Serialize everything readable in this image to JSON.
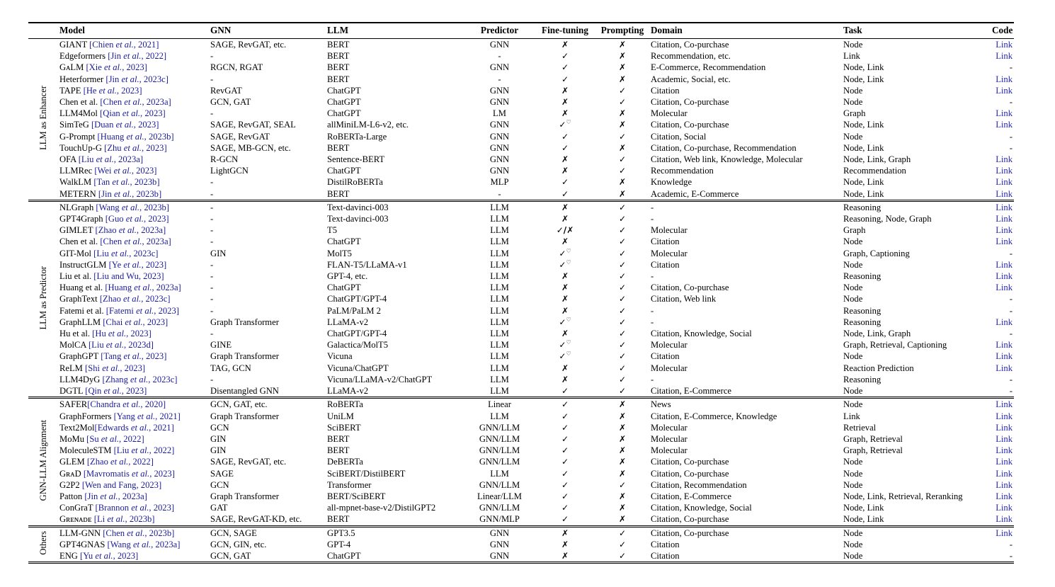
{
  "page": {
    "background": "#ffffff"
  },
  "colors": {
    "text": "#000000",
    "cite": "#1b1b9a",
    "link": "#2525b2"
  },
  "table": {
    "headers": [
      {
        "label": "Model",
        "align": "left"
      },
      {
        "label": "GNN",
        "align": "left"
      },
      {
        "label": "LLM",
        "align": "left"
      },
      {
        "label": "Predictor",
        "align": "center"
      },
      {
        "label": "Fine-tuning",
        "align": "center"
      },
      {
        "label": "Prompting",
        "align": "center"
      },
      {
        "label": "Domain",
        "align": "left"
      },
      {
        "label": "Task",
        "align": "left"
      },
      {
        "label": "Code",
        "align": "right"
      }
    ],
    "groups": [
      {
        "label": "LLM as Enhancer",
        "rows": [
          {
            "model": "GIANT ",
            "cite": "[Chien et al., 2021]",
            "gnn": "SAGE, RevGAT, etc.",
            "llm": "BERT",
            "predictor": "GNN",
            "fine_tuning": "✗",
            "prompting": "✗",
            "domain": "Citation, Co-purchase",
            "task": "Node",
            "code": "Link"
          },
          {
            "model": "Edgeformers ",
            "cite": "[Jin et al., 2022]",
            "gnn": "-",
            "llm": "BERT",
            "predictor": "-",
            "fine_tuning": "✓",
            "prompting": "✗",
            "domain": "Recommendation, etc.",
            "task": "Link",
            "code": "Link"
          },
          {
            "model": "GᴀLM ",
            "cite": "[Xie et al., 2023]",
            "gnn": "RGCN, RGAT",
            "llm": "BERT",
            "predictor": "GNN",
            "fine_tuning": "✓",
            "prompting": "✗",
            "domain": "E-Commerce, Recommendation",
            "task": "Node, Link",
            "code": "-"
          },
          {
            "model": "Heterformer ",
            "cite": "[Jin et al., 2023c]",
            "gnn": "-",
            "llm": "BERT",
            "predictor": "-",
            "fine_tuning": "✓",
            "prompting": "✗",
            "domain": "Academic, Social, etc.",
            "task": "Node, Link",
            "code": "Link"
          },
          {
            "model": "TAPE ",
            "cite": "[He et al., 2023]",
            "gnn": "RevGAT",
            "llm": "ChatGPT",
            "predictor": "GNN",
            "fine_tuning": "✗",
            "prompting": "✓",
            "domain": "Citation",
            "task": "Node",
            "code": "Link"
          },
          {
            "model": "Chen et al. ",
            "cite": "[Chen et al., 2023a]",
            "gnn": "GCN, GAT",
            "llm": "ChatGPT",
            "predictor": "GNN",
            "fine_tuning": "✗",
            "prompting": "✓",
            "domain": "Citation, Co-purchase",
            "task": "Node",
            "code": "-"
          },
          {
            "model": "LLM4Mol ",
            "cite": "[Qian et al., 2023]",
            "gnn": "-",
            "llm": "ChatGPT",
            "predictor": "LM",
            "fine_tuning": "✗",
            "prompting": "✗",
            "domain": "Molecular",
            "task": "Graph",
            "code": "Link"
          },
          {
            "model": "SimTeG ",
            "cite": "[Duan et al., 2023]",
            "gnn": "SAGE, RevGAT, SEAL",
            "llm": "allMiniLM-L6-v2, etc.",
            "predictor": "GNN",
            "fine_tuning": "✓♡",
            "prompting": "✗",
            "domain": "Citation, Co-purchase",
            "task": "Node, Link",
            "code": "Link"
          },
          {
            "model": "G-Prompt ",
            "cite": "[Huang et al., 2023b]",
            "gnn": "SAGE, RevGAT",
            "llm": "RoBERTa-Large",
            "predictor": "GNN",
            "fine_tuning": "✓",
            "prompting": "✓",
            "domain": "Citation, Social",
            "task": "Node",
            "code": "-"
          },
          {
            "model": "TouchUp-G ",
            "cite": "[Zhu et al., 2023]",
            "gnn": "SAGE, MB-GCN, etc.",
            "llm": "BERT",
            "predictor": "GNN",
            "fine_tuning": "✓",
            "prompting": "✗",
            "domain": "Citation, Co-purchase, Recommendation",
            "task": "Node, Link",
            "code": "-"
          },
          {
            "model": "OFA ",
            "cite": "[Liu et al., 2023a]",
            "gnn": "R-GCN",
            "llm": "Sentence-BERT",
            "predictor": "GNN",
            "fine_tuning": "✗",
            "prompting": "✓",
            "domain": "Citation, Web link, Knowledge, Molecular",
            "task": "Node, Link, Graph",
            "code": "Link"
          },
          {
            "model": "LLMRec ",
            "cite": "[Wei et al., 2023]",
            "gnn": "LightGCN",
            "llm": "ChatGPT",
            "predictor": "GNN",
            "fine_tuning": "✗",
            "prompting": "✓",
            "domain": "Recommendation",
            "task": "Recommendation",
            "code": "Link"
          },
          {
            "model": "WalkLM ",
            "cite": "[Tan et al., 2023b]",
            "gnn": "-",
            "llm": "DistilRoBERTa",
            "predictor": "MLP",
            "fine_tuning": "✓",
            "prompting": "✗",
            "domain": "Knowledge",
            "task": "Node, Link",
            "code": "Link"
          },
          {
            "model": "METERN ",
            "cite": "[Jin et al., 2023b]",
            "gnn": "-",
            "llm": "BERT",
            "predictor": "-",
            "fine_tuning": "✓",
            "prompting": "✗",
            "domain": "Academic, E-Commerce",
            "task": "Node, Link",
            "code": "Link"
          }
        ]
      },
      {
        "label": "LLM as Predictor",
        "rows": [
          {
            "model": "NLGraph ",
            "cite": "[Wang et al., 2023b]",
            "gnn": "-",
            "llm": "Text-davinci-003",
            "predictor": "LLM",
            "fine_tuning": "✗",
            "prompting": "✓",
            "domain": "-",
            "task": "Reasoning",
            "code": "Link"
          },
          {
            "model": "GPT4Graph ",
            "cite": "[Guo et al., 2023]",
            "gnn": "-",
            "llm": "Text-davinci-003",
            "predictor": "LLM",
            "fine_tuning": "✗",
            "prompting": "✓",
            "domain": "-",
            "task": "Reasoning, Node, Graph",
            "code": "Link"
          },
          {
            "model": "GIMLET ",
            "cite": "[Zhao et al., 2023a]",
            "gnn": "-",
            "llm": "T5",
            "predictor": "LLM",
            "fine_tuning": "✓/✗",
            "prompting": "✓",
            "domain": "Molecular",
            "task": "Graph",
            "code": "Link"
          },
          {
            "model": "Chen et al. ",
            "cite": "[Chen et al., 2023a]",
            "gnn": "-",
            "llm": "ChatGPT",
            "predictor": "LLM",
            "fine_tuning": "✗",
            "prompting": "✓",
            "domain": "Citation",
            "task": "Node",
            "code": "Link"
          },
          {
            "model": "GIT-Mol ",
            "cite": "[Liu et al., 2023c]",
            "gnn": "GIN",
            "llm": "MolT5",
            "predictor": "LLM",
            "fine_tuning": "✓♡",
            "prompting": "✓",
            "domain": "Molecular",
            "task": "Graph, Captioning",
            "code": "-"
          },
          {
            "model": "InstructGLM ",
            "cite": "[Ye et al., 2023]",
            "gnn": "-",
            "llm": "FLAN-T5/LLaMA-v1",
            "predictor": "LLM",
            "fine_tuning": "✓♡",
            "prompting": "✓",
            "domain": "Citation",
            "task": "Node",
            "code": "Link"
          },
          {
            "model": "Liu et al. ",
            "cite": "[Liu and Wu, 2023]",
            "gnn": "-",
            "llm": "GPT-4, etc.",
            "predictor": "LLM",
            "fine_tuning": "✗",
            "prompting": "✓",
            "domain": "-",
            "task": "Reasoning",
            "code": "Link"
          },
          {
            "model": "Huang et al. ",
            "cite": "[Huang et al., 2023a]",
            "gnn": "-",
            "llm": "ChatGPT",
            "predictor": "LLM",
            "fine_tuning": "✗",
            "prompting": "✓",
            "domain": "Citation, Co-purchase",
            "task": "Node",
            "code": "Link"
          },
          {
            "model": "GraphText ",
            "cite": "[Zhao et al., 2023c]",
            "gnn": "-",
            "llm": "ChatGPT/GPT-4",
            "predictor": "LLM",
            "fine_tuning": "✗",
            "prompting": "✓",
            "domain": "Citation, Web link",
            "task": "Node",
            "code": "-"
          },
          {
            "model": "Fatemi et al. ",
            "cite": "[Fatemi et al., 2023]",
            "gnn": "-",
            "llm": "PaLM/PaLM 2",
            "predictor": "LLM",
            "fine_tuning": "✗",
            "prompting": "✓",
            "domain": "-",
            "task": "Reasoning",
            "code": "-"
          },
          {
            "model": "GraphLLM ",
            "cite": "[Chai et al., 2023]",
            "gnn": "Graph Transformer",
            "llm": "LLaMA-v2",
            "predictor": "LLM",
            "fine_tuning": "✓♡",
            "prompting": "✓",
            "domain": "-",
            "task": "Reasoning",
            "code": "Link"
          },
          {
            "model": "Hu et al. ",
            "cite": "[Hu et al., 2023]",
            "gnn": "-",
            "llm": "ChatGPT/GPT-4",
            "predictor": "LLM",
            "fine_tuning": "✗",
            "prompting": "✓",
            "domain": "Citation, Knowledge, Social",
            "task": "Node, Link, Graph",
            "code": "-"
          },
          {
            "model": "MolCA ",
            "cite": "[Liu et al., 2023d]",
            "gnn": "GINE",
            "llm": "Galactica/MolT5",
            "predictor": "LLM",
            "fine_tuning": "✓♡",
            "prompting": "✓",
            "domain": "Molecular",
            "task": "Graph, Retrieval, Captioning",
            "code": "Link"
          },
          {
            "model": "GraphGPT ",
            "cite": "[Tang et al., 2023]",
            "gnn": "Graph Transformer",
            "llm": "Vicuna",
            "predictor": "LLM",
            "fine_tuning": "✓♡",
            "prompting": "✓",
            "domain": "Citation",
            "task": "Node",
            "code": "Link"
          },
          {
            "model": "ReLM ",
            "cite": "[Shi et al., 2023]",
            "gnn": "TAG, GCN",
            "llm": "Vicuna/ChatGPT",
            "predictor": "LLM",
            "fine_tuning": "✗",
            "prompting": "✓",
            "domain": "Molecular",
            "task": "Reaction Prediction",
            "code": "Link"
          },
          {
            "model": "LLM4DyG ",
            "cite": "[Zhang et al., 2023c]",
            "gnn": "-",
            "llm": "Vicuna/LLaMA-v2/ChatGPT",
            "predictor": "LLM",
            "fine_tuning": "✗",
            "prompting": "✓",
            "domain": "-",
            "task": "Reasoning",
            "code": "-"
          },
          {
            "model": "DGTL ",
            "cite": "[Qin et al., 2023]",
            "gnn": "Disentangled GNN",
            "llm": "LLaMA-v2",
            "predictor": "LLM",
            "fine_tuning": "✓",
            "prompting": "✓",
            "domain": "Citation, E-Commerce",
            "task": "Node",
            "code": "-"
          }
        ]
      },
      {
        "label": "GNN-LLM Alignment",
        "rows": [
          {
            "model": "SAFER",
            "cite": "[Chandra et al., 2020]",
            "gnn": "GCN, GAT, etc.",
            "llm": "RoBERTa",
            "predictor": "Linear",
            "fine_tuning": "✓",
            "prompting": "✗",
            "domain": "News",
            "task": "Node",
            "code": "Link"
          },
          {
            "model": "GraphFormers ",
            "cite": "[Yang et al., 2021]",
            "gnn": "Graph Transformer",
            "llm": "UniLM",
            "predictor": "LLM",
            "fine_tuning": "✓",
            "prompting": "✗",
            "domain": "Citation, E-Commerce, Knowledge",
            "task": "Link",
            "code": "Link"
          },
          {
            "model": "Text2Mol",
            "cite": "[Edwards et al., 2021]",
            "gnn": "GCN",
            "llm": "SciBERT",
            "predictor": "GNN/LLM",
            "fine_tuning": "✓",
            "prompting": "✗",
            "domain": "Molecular",
            "task": "Retrieval",
            "code": "Link"
          },
          {
            "model": "MoMu ",
            "cite": "[Su et al., 2022]",
            "gnn": "GIN",
            "llm": "BERT",
            "predictor": "GNN/LLM",
            "fine_tuning": "✓",
            "prompting": "✗",
            "domain": "Molecular",
            "task": "Graph, Retrieval",
            "code": "Link"
          },
          {
            "model": "MoleculeSTM ",
            "cite": "[Liu et al., 2022]",
            "gnn": "GIN",
            "llm": "BERT",
            "predictor": "GNN/LLM",
            "fine_tuning": "✓",
            "prompting": "✗",
            "domain": "Molecular",
            "task": "Graph, Retrieval",
            "code": "Link"
          },
          {
            "model": "GLEM ",
            "cite": "[Zhao et al., 2022]",
            "gnn": "SAGE, RevGAT, etc.",
            "llm": "DeBERTa",
            "predictor": "GNN/LLM",
            "fine_tuning": "✓",
            "prompting": "✗",
            "domain": "Citation, Co-purchase",
            "task": "Node",
            "code": "Link"
          },
          {
            "model": "GʀᴀD ",
            "cite": "[Mavromatis et al., 2023]",
            "gnn": "SAGE",
            "llm": "SciBERT/DistilBERT",
            "predictor": "LLM",
            "fine_tuning": "✓",
            "prompting": "✗",
            "domain": "Citation, Co-purchase",
            "task": "Node",
            "code": "Link"
          },
          {
            "model": "G2P2 ",
            "cite": "[Wen and Fang, 2023]",
            "gnn": "GCN",
            "llm": "Transformer",
            "predictor": "GNN/LLM",
            "fine_tuning": "✓",
            "prompting": "✓",
            "domain": "Citation, Recommendation",
            "task": "Node",
            "code": "Link"
          },
          {
            "model": "Patton ",
            "cite": "[Jin et al., 2023a]",
            "gnn": "Graph Transformer",
            "llm": "BERT/SciBERT",
            "predictor": "Linear/LLM",
            "fine_tuning": "✓",
            "prompting": "✗",
            "domain": "Citation, E-Commerce",
            "task": "Node, Link, Retrieval, Reranking",
            "code": "Link"
          },
          {
            "model": "ConGraT ",
            "cite": "[Brannon et al., 2023]",
            "gnn": "GAT",
            "llm": "all-mpnet-base-v2/DistilGPT2",
            "predictor": "GNN/LLM",
            "fine_tuning": "✓",
            "prompting": "✗",
            "domain": "Citation, Knowledge, Social",
            "task": "Node, Link",
            "code": "Link"
          },
          {
            "model": "Gʀᴇɴᴀᴅᴇ ",
            "cite": "[Li et al., 2023b]",
            "gnn": "SAGE, RevGAT-KD, etc.",
            "llm": "BERT",
            "predictor": "GNN/MLP",
            "fine_tuning": "✓",
            "prompting": "✗",
            "domain": "Citation, Co-purchase",
            "task": "Node, Link",
            "code": "Link"
          }
        ]
      },
      {
        "label": "Others",
        "rows": [
          {
            "model": "LLM-GNN ",
            "cite": "[Chen et al., 2023b]",
            "gnn": "GCN, SAGE",
            "llm": "GPT3.5",
            "predictor": "GNN",
            "fine_tuning": "✗",
            "prompting": "✓",
            "domain": "Citation, Co-purchase",
            "task": "Node",
            "code": "Link"
          },
          {
            "model": "GPT4GNAS ",
            "cite": "[Wang et al., 2023a]",
            "gnn": "GCN, GIN, etc.",
            "llm": "GPT-4",
            "predictor": "GNN",
            "fine_tuning": "✗",
            "prompting": "✓",
            "domain": "Citation",
            "task": "Node",
            "code": "-"
          },
          {
            "model": "ENG ",
            "cite": "[Yu et al., 2023]",
            "gnn": "GCN, GAT",
            "llm": "ChatGPT",
            "predictor": "GNN",
            "fine_tuning": "✗",
            "prompting": "✓",
            "domain": "Citation",
            "task": "Node",
            "code": "-"
          }
        ]
      }
    ]
  }
}
